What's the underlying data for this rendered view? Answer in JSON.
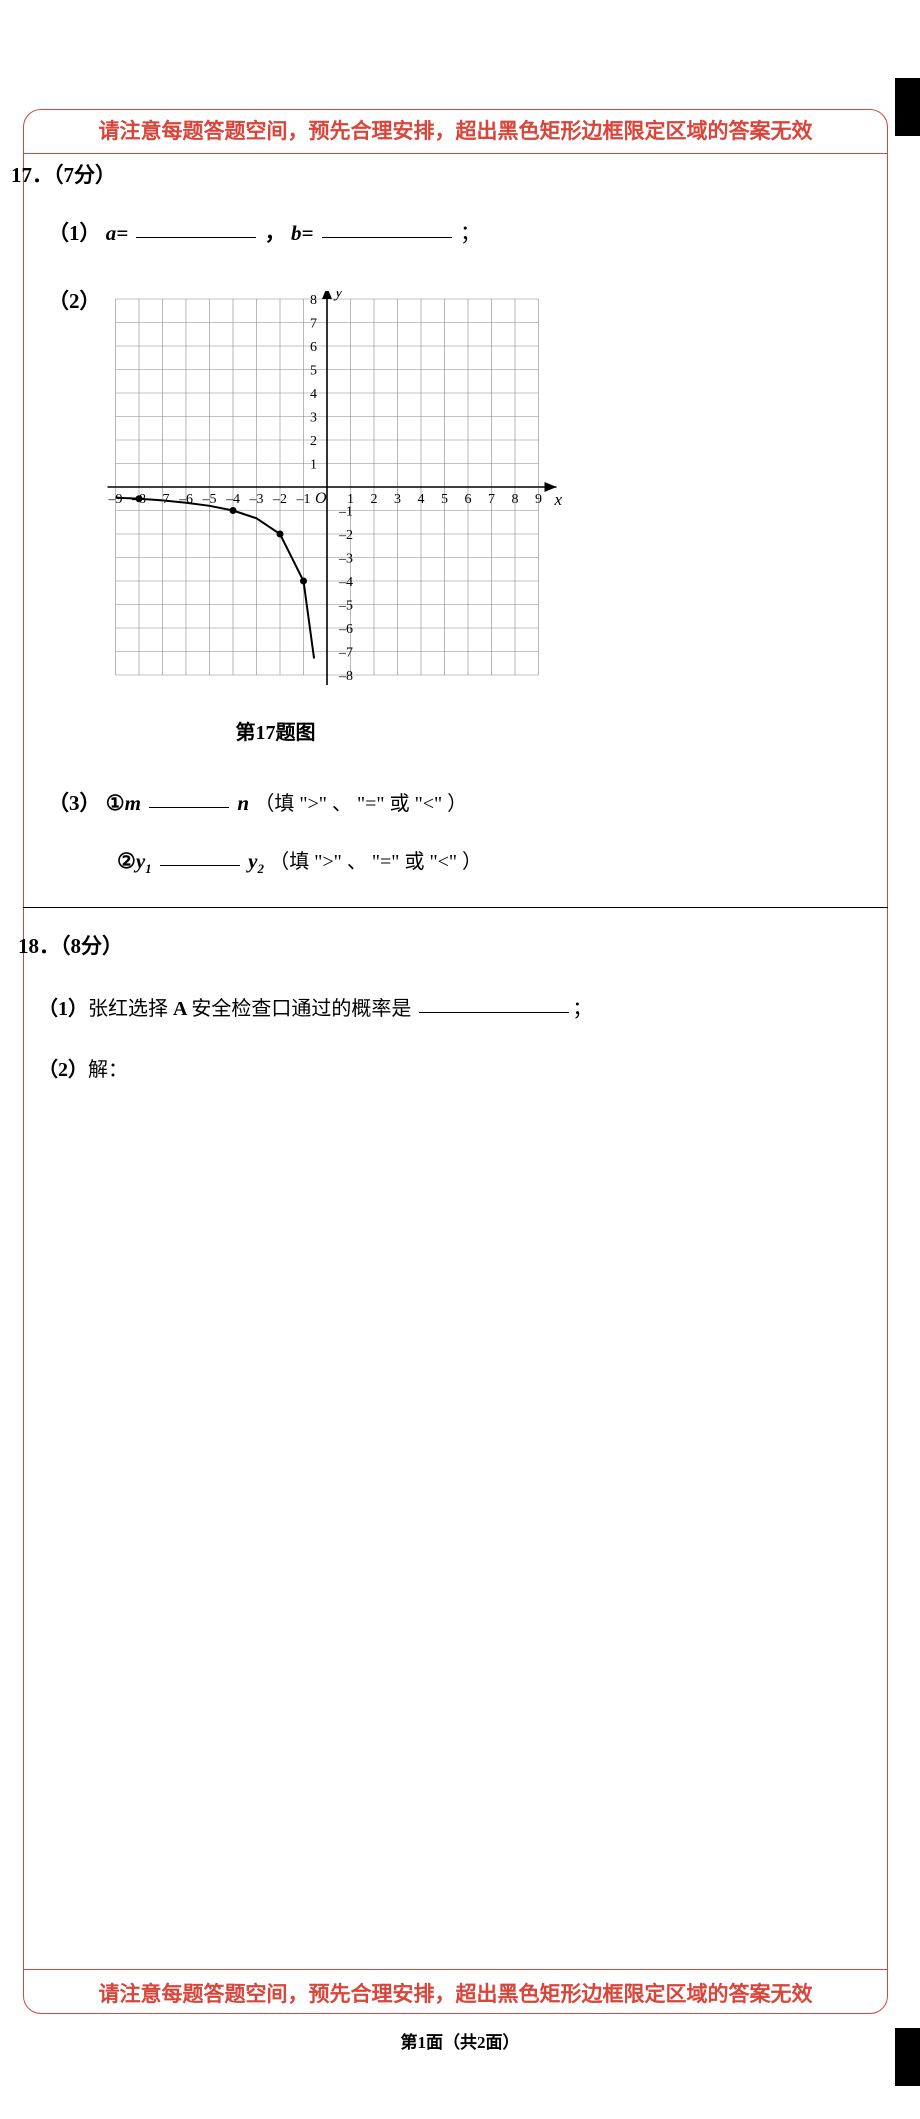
{
  "warning": "请注意每题答题空间，预先合理安排，超出黑色矩形边框限定区域的答案无效",
  "q17": {
    "header": "17．（7分）",
    "part1": {
      "label": "（1）",
      "a": "a=",
      "comma": "，",
      "b": "b=",
      "semi": "；",
      "blank_width_a": 120,
      "blank_width_b": 130
    },
    "part2": {
      "label": "（2）"
    },
    "graph": {
      "caption": "第17题图",
      "x_range": [
        -9,
        9
      ],
      "y_range": [
        -8,
        8
      ],
      "x_ticks": [
        -9,
        -8,
        -7,
        -6,
        -5,
        -4,
        -3,
        -2,
        -1,
        1,
        2,
        3,
        4,
        5,
        6,
        7,
        8,
        9
      ],
      "y_ticks": [
        -8,
        -7,
        -6,
        -5,
        -4,
        -3,
        -2,
        -1,
        1,
        2,
        3,
        4,
        5,
        6,
        7,
        8
      ],
      "origin_label": "O",
      "x_axis_label": "x",
      "y_axis_label": "y",
      "cell_size": 23.5,
      "grid_color": "#888888",
      "axis_color": "#000000",
      "curve_points": [
        [
          -9,
          -0.45
        ],
        [
          -8,
          -0.5
        ],
        [
          -7,
          -0.57
        ],
        [
          -6,
          -0.67
        ],
        [
          -5,
          -0.8
        ],
        [
          -4,
          -1
        ],
        [
          -3,
          -1.33
        ],
        [
          -2,
          -2
        ],
        [
          -1,
          -4
        ],
        [
          -0.55,
          -7.3
        ]
      ],
      "marker_points": [
        [
          -8,
          -0.5
        ],
        [
          -4,
          -1
        ],
        [
          -2,
          -2
        ],
        [
          -1,
          -4
        ]
      ]
    },
    "part3": {
      "label": "（3）",
      "line1_circled": "①",
      "line1_m": "m",
      "line1_blank_width": 80,
      "line1_n": "n",
      "line1_text": "（填 \">\" 、 \"=\" 或 \"<\" ）",
      "line2_circled": "②",
      "line2_y1": "y₁",
      "line2_blank_width": 80,
      "line2_y2": "y₂",
      "line2_text": "（填 \">\" 、 \"=\" 或 \"<\" ）"
    }
  },
  "q18": {
    "header": "18．（8分）",
    "part1": {
      "label": "（1）",
      "text": "张红选择 A 安全检查口通过的概率是",
      "blank_width": 150,
      "semi": "；"
    },
    "part2": {
      "label": "（2）",
      "text": "解："
    }
  },
  "footer": "第1面（共2面）"
}
